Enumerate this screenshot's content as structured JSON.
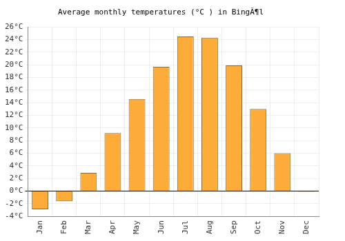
{
  "chart_data": {
    "type": "bar",
    "title": "Average monthly temperatures (°C ) in BingÃ¶l",
    "categories": [
      "Jan",
      "Feb",
      "Mar",
      "Apr",
      "May",
      "Jun",
      "Jul",
      "Aug",
      "Sep",
      "Oct",
      "Nov",
      "Dec"
    ],
    "values": [
      -2.9,
      -1.6,
      2.9,
      9.2,
      14.6,
      19.7,
      24.5,
      24.3,
      19.9,
      13.0,
      6.0,
      -0.1
    ],
    "color": "#fdac3a",
    "ylim": [
      -4,
      26
    ],
    "yticks": [
      {
        "value": -4,
        "label": "-4°C"
      },
      {
        "value": -2,
        "label": "-2°C"
      },
      {
        "value": 0,
        "label": "0°C"
      },
      {
        "value": 2,
        "label": "2°C"
      },
      {
        "value": 4,
        "label": "4°C"
      },
      {
        "value": 6,
        "label": "6°C"
      },
      {
        "value": 8,
        "label": "8°C"
      },
      {
        "value": 10,
        "label": "10°C"
      },
      {
        "value": 12,
        "label": "12°C"
      },
      {
        "value": 14,
        "label": "14°C"
      },
      {
        "value": 16,
        "label": "16°C"
      },
      {
        "value": 18,
        "label": "18°C"
      },
      {
        "value": 20,
        "label": "20°C"
      },
      {
        "value": 22,
        "label": "22°C"
      },
      {
        "value": 24,
        "label": "24°C"
      },
      {
        "value": 26,
        "label": "26°C"
      }
    ],
    "grid": true
  }
}
